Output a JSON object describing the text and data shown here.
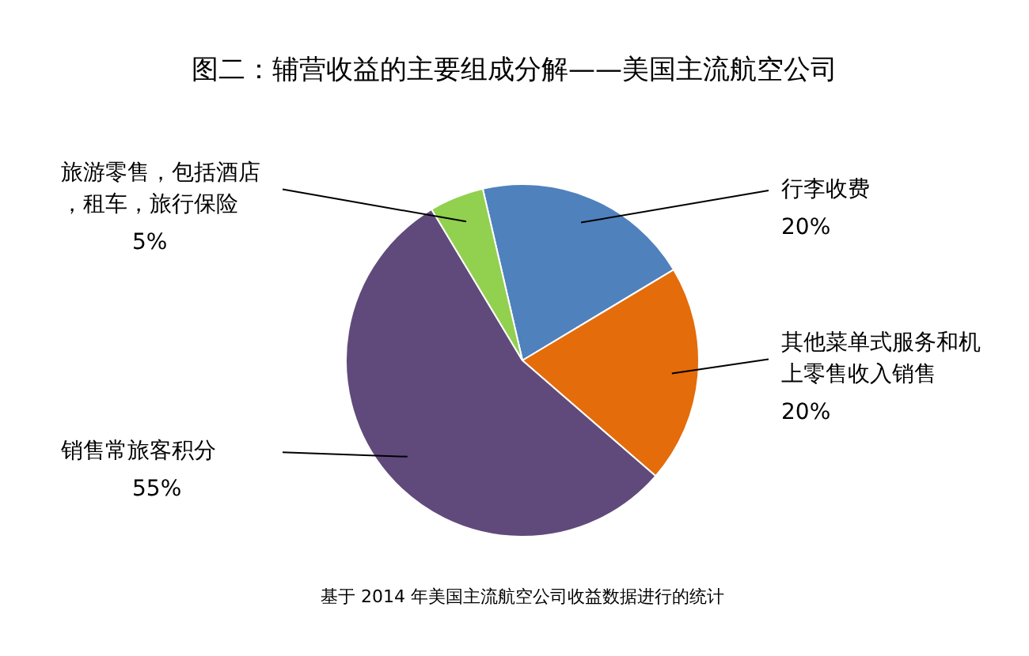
{
  "chart_data": {
    "type": "pie",
    "title": "图二：辅营收益的主要组成分解——美国主流航空公司",
    "categories": [
      "行李收费",
      "其他菜单式服务和机上零售收入销售",
      "销售常旅客积分",
      "旅游零售，包括酒店，租车，旅行保险"
    ],
    "values": [
      20,
      20,
      55,
      5
    ],
    "value_labels": [
      "20%",
      "20%",
      "55%",
      "5%"
    ],
    "colors": [
      "#4f81bd",
      "#e46c0a",
      "#604a7b",
      "#92d050"
    ],
    "annotations": [
      "基于 2014 年美国主流航空公司收益数据进行的统计"
    ],
    "legend": false
  }
}
